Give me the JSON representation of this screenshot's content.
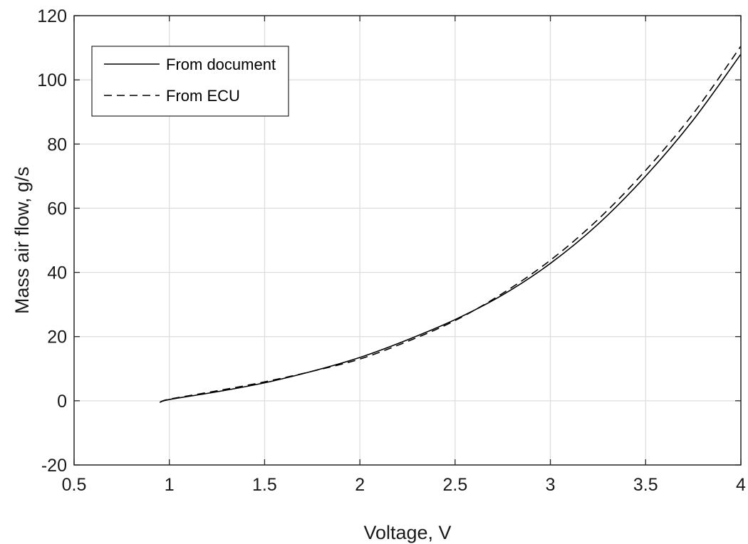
{
  "chart_data": {
    "type": "line",
    "title": "",
    "xlabel": "Voltage, V",
    "ylabel": "Mass air flow, g/s",
    "xlim": [
      0.5,
      4
    ],
    "ylim": [
      -20,
      120
    ],
    "xticks": [
      0.5,
      1,
      1.5,
      2,
      2.5,
      3,
      3.5,
      4
    ],
    "xtick_labels": [
      "0.5",
      "1",
      "1.5",
      "2",
      "2.5",
      "3",
      "3.5",
      "4"
    ],
    "yticks": [
      -20,
      0,
      20,
      40,
      60,
      80,
      100,
      120
    ],
    "ytick_labels": [
      "-20",
      "0",
      "20",
      "40",
      "60",
      "80",
      "100",
      "120"
    ],
    "grid": true,
    "legend_position": "top-left",
    "series": [
      {
        "name": "From document",
        "style": "solid",
        "color": "#000000",
        "x": [
          0.95,
          1.0,
          1.25,
          1.5,
          1.75,
          2.0,
          2.25,
          2.5,
          2.75,
          3.0,
          3.25,
          3.5,
          3.75,
          4.0
        ],
        "y": [
          -0.5,
          0.4,
          2.8,
          5.6,
          9.2,
          13.5,
          19.0,
          25.3,
          33.0,
          42.8,
          55.0,
          70.0,
          87.5,
          108.0
        ]
      },
      {
        "name": "From ECU",
        "style": "dashed",
        "color": "#000000",
        "x": [
          0.95,
          1.0,
          1.25,
          1.5,
          1.75,
          2.0,
          2.25,
          2.5,
          2.75,
          3.0,
          3.25,
          3.5,
          3.75,
          4.0
        ],
        "y": [
          -0.5,
          0.5,
          3.1,
          5.9,
          9.2,
          13.0,
          18.5,
          25.0,
          33.5,
          43.8,
          56.5,
          71.8,
          89.5,
          110.5
        ]
      }
    ]
  }
}
